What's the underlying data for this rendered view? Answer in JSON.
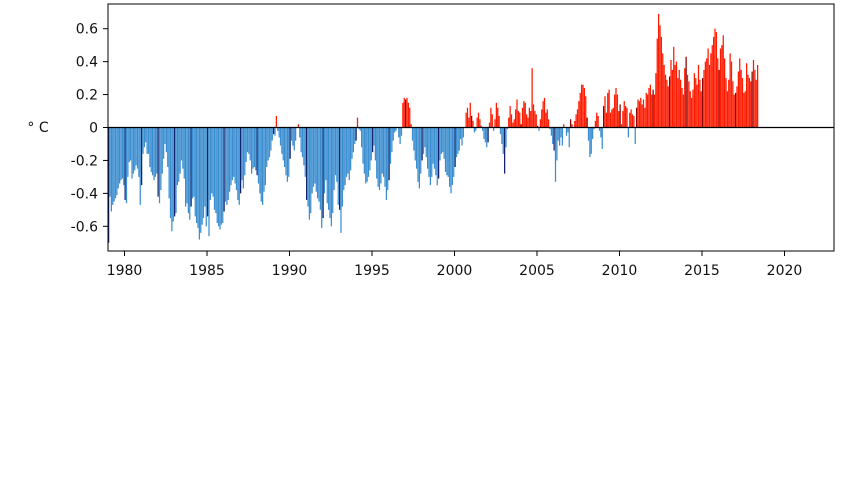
{
  "chart_data": {
    "type": "bar",
    "title": "",
    "xlabel": "",
    "ylabel": "° C",
    "xlim": [
      1979.0,
      2023.0
    ],
    "ylim": [
      -0.75,
      0.75
    ],
    "x_ticks": [
      1980,
      1985,
      1990,
      1995,
      2000,
      2005,
      2010,
      2015,
      2020
    ],
    "y_ticks": [
      -0.6,
      -0.4,
      -0.2,
      0,
      0.2,
      0.4,
      0.6
    ],
    "y_tick_labels": [
      "-0.6",
      "-0.4",
      "-0.2",
      "0",
      "0.2",
      "0.4",
      "0.6"
    ],
    "grid": false,
    "legend": "none",
    "colors": {
      "positive": "#ff1a00",
      "positive_dark": "#8b0000",
      "negative": "#3b8ed0",
      "negative_dark": "#11236f",
      "axis": "#000000"
    },
    "series": [
      {
        "x_start": 1979.0,
        "x_step": 0.0833333333,
        "values": [
          -0.7,
          -0.42,
          -0.51,
          -0.47,
          -0.45,
          -0.43,
          -0.41,
          -0.37,
          -0.34,
          -0.32,
          -0.31,
          -0.35,
          -0.44,
          -0.46,
          -0.3,
          -0.21,
          -0.2,
          -0.31,
          -0.28,
          -0.26,
          -0.23,
          -0.25,
          -0.3,
          -0.47,
          -0.35,
          -0.16,
          -0.12,
          -0.09,
          -0.16,
          -0.16,
          -0.24,
          -0.27,
          -0.29,
          -0.32,
          -0.3,
          -0.28,
          -0.42,
          -0.46,
          -0.38,
          -0.28,
          -0.19,
          -0.1,
          -0.15,
          -0.24,
          -0.43,
          -0.55,
          -0.63,
          -0.57,
          -0.54,
          -0.52,
          -0.35,
          -0.33,
          -0.28,
          -0.2,
          -0.25,
          -0.31,
          -0.48,
          -0.46,
          -0.52,
          -0.56,
          -0.48,
          -0.43,
          -0.42,
          -0.54,
          -0.58,
          -0.61,
          -0.68,
          -0.64,
          -0.59,
          -0.55,
          -0.48,
          -0.6,
          -0.54,
          -0.66,
          -0.44,
          -0.4,
          -0.42,
          -0.5,
          -0.52,
          -0.58,
          -0.6,
          -0.62,
          -0.59,
          -0.58,
          -0.51,
          -0.45,
          -0.47,
          -0.44,
          -0.39,
          -0.35,
          -0.32,
          -0.3,
          -0.34,
          -0.38,
          -0.44,
          -0.47,
          -0.4,
          -0.32,
          -0.37,
          -0.29,
          -0.21,
          -0.15,
          -0.16,
          -0.2,
          -0.28,
          -0.25,
          -0.24,
          -0.26,
          -0.29,
          -0.34,
          -0.4,
          -0.45,
          -0.47,
          -0.39,
          -0.35,
          -0.24,
          -0.2,
          -0.18,
          -0.14,
          -0.08,
          -0.04,
          -0.05,
          0.07,
          -0.02,
          -0.06,
          -0.11,
          -0.16,
          -0.2,
          -0.24,
          -0.29,
          -0.33,
          -0.3,
          -0.19,
          -0.08,
          -0.11,
          -0.14,
          -0.08,
          0.0,
          0.02,
          -0.06,
          -0.15,
          -0.18,
          -0.23,
          -0.3,
          -0.44,
          -0.48,
          -0.56,
          -0.52,
          -0.4,
          -0.36,
          -0.34,
          -0.39,
          -0.43,
          -0.45,
          -0.5,
          -0.61,
          -0.55,
          -0.4,
          -0.32,
          -0.46,
          -0.5,
          -0.55,
          -0.6,
          -0.52,
          -0.38,
          -0.29,
          -0.33,
          -0.47,
          -0.5,
          -0.64,
          -0.48,
          -0.38,
          -0.35,
          -0.3,
          -0.28,
          -0.32,
          -0.26,
          -0.19,
          -0.15,
          -0.1,
          -0.08,
          0.06,
          -0.01,
          -0.02,
          -0.12,
          -0.22,
          -0.28,
          -0.34,
          -0.33,
          -0.3,
          -0.26,
          -0.2,
          -0.15,
          -0.11,
          -0.2,
          -0.31,
          -0.36,
          -0.38,
          -0.34,
          -0.28,
          -0.3,
          -0.36,
          -0.44,
          -0.38,
          -0.32,
          -0.22,
          -0.15,
          -0.08,
          -0.03,
          -0.02,
          0.0,
          -0.06,
          -0.1,
          -0.05,
          0.15,
          0.18,
          0.17,
          0.18,
          0.15,
          0.12,
          0.02,
          -0.08,
          -0.14,
          -0.2,
          -0.25,
          -0.33,
          -0.37,
          -0.28,
          -0.2,
          -0.16,
          -0.12,
          -0.18,
          -0.25,
          -0.3,
          -0.35,
          -0.3,
          -0.22,
          -0.25,
          -0.29,
          -0.35,
          -0.31,
          -0.2,
          -0.16,
          -0.15,
          -0.19,
          -0.27,
          -0.29,
          -0.3,
          -0.36,
          -0.4,
          -0.35,
          -0.3,
          -0.24,
          -0.18,
          -0.16,
          -0.14,
          -0.07,
          -0.11,
          -0.06,
          0.0,
          0.09,
          0.12,
          0.06,
          0.15,
          0.07,
          0.04,
          -0.03,
          -0.02,
          0.06,
          0.09,
          0.05,
          0.01,
          -0.02,
          -0.07,
          -0.09,
          -0.12,
          -0.09,
          0.03,
          0.12,
          0.08,
          -0.02,
          0.05,
          0.15,
          0.12,
          0.07,
          -0.04,
          -0.1,
          -0.16,
          -0.28,
          -0.12,
          -0.01,
          0.06,
          0.13,
          0.08,
          0.03,
          0.05,
          0.11,
          0.17,
          0.1,
          0.09,
          0.02,
          0.12,
          0.16,
          0.15,
          0.08,
          0.06,
          0.12,
          0.1,
          0.36,
          0.14,
          0.1,
          0.08,
          0.01,
          -0.02,
          0.05,
          0.11,
          0.16,
          0.18,
          0.09,
          0.11,
          0.05,
          -0.01,
          -0.05,
          -0.1,
          -0.14,
          -0.33,
          -0.2,
          -0.08,
          -0.11,
          -0.06,
          -0.11,
          0.02,
          0.0,
          -0.05,
          -0.03,
          -0.12,
          0.05,
          0.02,
          0.0,
          0.04,
          0.08,
          0.11,
          0.16,
          0.21,
          0.26,
          0.26,
          0.24,
          0.19,
          0.06,
          -0.08,
          -0.18,
          -0.16,
          -0.07,
          -0.01,
          0.04,
          0.09,
          0.07,
          -0.02,
          -0.06,
          -0.13,
          0.13,
          0.19,
          0.09,
          0.21,
          0.23,
          0.09,
          0.11,
          0.12,
          0.2,
          0.24,
          0.2,
          0.1,
          0.14,
          0.02,
          0.1,
          0.16,
          0.13,
          0.12,
          -0.06,
          0.09,
          0.11,
          0.08,
          0.07,
          -0.1,
          0.12,
          0.17,
          0.16,
          0.18,
          0.14,
          0.17,
          0.12,
          0.21,
          0.2,
          0.24,
          0.26,
          0.2,
          0.23,
          0.2,
          0.33,
          0.54,
          0.69,
          0.62,
          0.55,
          0.45,
          0.38,
          0.32,
          0.29,
          0.25,
          0.31,
          0.41,
          0.35,
          0.49,
          0.38,
          0.4,
          0.3,
          0.35,
          0.29,
          0.24,
          0.2,
          0.36,
          0.43,
          0.32,
          0.28,
          0.22,
          0.18,
          0.23,
          0.33,
          0.3,
          0.26,
          0.38,
          0.29,
          0.22,
          0.3,
          0.35,
          0.4,
          0.42,
          0.48,
          0.38,
          0.45,
          0.5,
          0.55,
          0.6,
          0.58,
          0.42,
          0.35,
          0.48,
          0.5,
          0.56,
          0.42,
          0.3,
          0.22,
          0.29,
          0.45,
          0.4,
          0.28,
          0.2,
          0.21,
          0.25,
          0.34,
          0.42,
          0.35,
          0.3,
          0.21,
          0.22,
          0.39,
          0.32,
          0.3,
          0.28,
          0.34,
          0.41,
          0.35,
          0.29,
          0.38
        ]
      }
    ]
  }
}
